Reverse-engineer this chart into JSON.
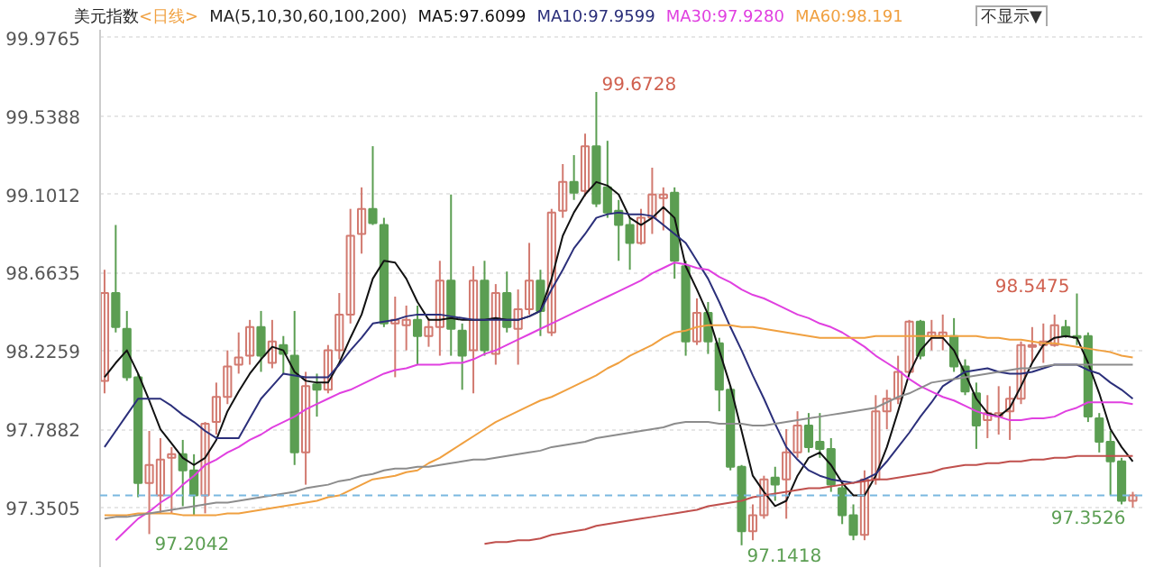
{
  "chart_data": {
    "type": "candlestick",
    "title": "美元指数",
    "subtitle": "<日线>",
    "legend_title": "MA(5,10,30,60,100,200)",
    "legend": "top",
    "tick_labels": "y",
    "grid": "y",
    "annotations": [
      "99.6728",
      "97.2042",
      "97.1418",
      "98.5475",
      "97.3526",
      "不显示▼"
    ],
    "ylim": [
      97.02,
      100.02
    ],
    "yticks": [
      97.3505,
      97.7882,
      98.2259,
      98.6635,
      99.1012,
      99.5388,
      99.9765
    ],
    "ref_lines": [
      {
        "axis": "y",
        "value": 97.42,
        "color": "#7ab8e0",
        "line_style": "dashed"
      }
    ],
    "categories": [
      null,
      null,
      null,
      null,
      null,
      null,
      null,
      null,
      null,
      null,
      null,
      null,
      null,
      null,
      null,
      null,
      null,
      null,
      null,
      null,
      null,
      null,
      null,
      null,
      null,
      null,
      null,
      null,
      null,
      null,
      null,
      null,
      null,
      null,
      null,
      null,
      null,
      null,
      null,
      null,
      null,
      null,
      null,
      null,
      null,
      null,
      null,
      null,
      null,
      null,
      null,
      null,
      null,
      null,
      null,
      null,
      null,
      null,
      null,
      null,
      null,
      null,
      null,
      null,
      null,
      null,
      null,
      null,
      null,
      null,
      null,
      null,
      null,
      null,
      null,
      null,
      null,
      null,
      null,
      null,
      null,
      null,
      null,
      null,
      null,
      null,
      null,
      null,
      null,
      null,
      null,
      null,
      null
    ],
    "ohlc": [
      [
        98.06,
        98.68,
        97.99,
        98.55
      ],
      [
        98.55,
        98.93,
        98.33,
        98.36
      ],
      [
        98.35,
        98.45,
        98.06,
        98.08
      ],
      [
        98.08,
        98.1,
        97.41,
        97.49
      ],
      [
        97.49,
        97.78,
        97.2042,
        97.59
      ],
      [
        97.42,
        97.74,
        97.32,
        97.62
      ],
      [
        97.63,
        97.69,
        97.32,
        97.65
      ],
      [
        97.65,
        97.73,
        97.36,
        97.56
      ],
      [
        97.56,
        97.65,
        97.31,
        97.42
      ],
      [
        97.42,
        97.83,
        97.32,
        97.82
      ],
      [
        97.83,
        98.05,
        97.76,
        97.97
      ],
      [
        97.97,
        98.23,
        97.93,
        98.14
      ],
      [
        98.15,
        98.33,
        98.1,
        98.19
      ],
      [
        98.2,
        98.4,
        98.15,
        98.36
      ],
      [
        98.36,
        98.45,
        98.11,
        98.2
      ],
      [
        98.16,
        98.4,
        98.13,
        98.28
      ],
      [
        98.26,
        98.31,
        98.1,
        98.21
      ],
      [
        98.2,
        98.45,
        97.59,
        97.66
      ],
      [
        97.66,
        98.11,
        97.48,
        98.03
      ],
      [
        98.04,
        98.1,
        97.86,
        98.01
      ],
      [
        98.01,
        98.26,
        97.99,
        98.23
      ],
      [
        98.23,
        98.55,
        98.18,
        98.43
      ],
      [
        98.43,
        99.02,
        98.38,
        98.87
      ],
      [
        98.88,
        99.14,
        98.77,
        99.02
      ],
      [
        99.02,
        99.37,
        98.93,
        98.94
      ],
      [
        98.93,
        98.97,
        98.36,
        98.38
      ],
      [
        98.38,
        98.53,
        98.08,
        98.4
      ],
      [
        98.37,
        98.48,
        98.23,
        98.4
      ],
      [
        98.4,
        98.48,
        98.15,
        98.31
      ],
      [
        98.31,
        98.41,
        98.25,
        98.36
      ],
      [
        98.36,
        98.73,
        98.2,
        98.62
      ],
      [
        98.62,
        99.1,
        98.2,
        98.35
      ],
      [
        98.34,
        98.38,
        98.01,
        98.2
      ],
      [
        98.23,
        98.7,
        97.99,
        98.62
      ],
      [
        98.62,
        98.73,
        98.2,
        98.23
      ],
      [
        98.21,
        98.6,
        98.15,
        98.55
      ],
      [
        98.55,
        98.67,
        98.33,
        98.36
      ],
      [
        98.35,
        98.57,
        98.15,
        98.46
      ],
      [
        98.46,
        98.83,
        98.43,
        98.62
      ],
      [
        98.62,
        98.68,
        98.31,
        98.45
      ],
      [
        98.33,
        99.02,
        98.31,
        99.0
      ],
      [
        99.01,
        99.27,
        98.97,
        99.17
      ],
      [
        99.17,
        99.32,
        99.07,
        99.11
      ],
      [
        99.12,
        99.44,
        99.09,
        99.37
      ],
      [
        99.37,
        99.6728,
        99.03,
        99.05
      ],
      [
        99.14,
        99.4,
        98.97,
        99.0
      ],
      [
        99.01,
        99.07,
        98.73,
        98.93
      ],
      [
        98.93,
        98.97,
        98.68,
        98.83
      ],
      [
        98.83,
        99.02,
        98.82,
        98.97
      ],
      [
        98.97,
        99.25,
        98.88,
        99.1
      ],
      [
        99.08,
        99.14,
        98.9,
        99.1
      ],
      [
        99.11,
        99.14,
        98.63,
        98.73
      ],
      [
        98.7,
        98.73,
        98.2,
        98.28
      ],
      [
        98.28,
        98.52,
        98.26,
        98.44
      ],
      [
        98.44,
        98.5,
        98.21,
        98.28
      ],
      [
        98.27,
        98.3,
        97.89,
        98.01
      ],
      [
        98.01,
        98.03,
        97.56,
        97.58
      ],
      [
        97.58,
        97.59,
        97.1418,
        97.22
      ],
      [
        97.22,
        97.37,
        97.17,
        97.31
      ],
      [
        97.31,
        97.53,
        97.29,
        97.51
      ],
      [
        97.52,
        97.58,
        97.39,
        97.48
      ],
      [
        97.51,
        97.79,
        97.29,
        97.66
      ],
      [
        97.66,
        97.89,
        97.63,
        97.81
      ],
      [
        97.81,
        97.88,
        97.66,
        97.69
      ],
      [
        97.72,
        97.88,
        97.63,
        97.68
      ],
      [
        97.68,
        97.74,
        97.44,
        97.48
      ],
      [
        97.46,
        97.49,
        97.26,
        97.31
      ],
      [
        97.31,
        97.37,
        97.17,
        97.2
      ],
      [
        97.2,
        97.56,
        97.17,
        97.51
      ],
      [
        97.51,
        97.98,
        97.48,
        97.89
      ],
      [
        97.89,
        98.01,
        97.79,
        97.96
      ],
      [
        97.96,
        98.2,
        97.93,
        98.11
      ],
      [
        98.11,
        98.4,
        98.1,
        98.39
      ],
      [
        98.39,
        98.4,
        98.18,
        98.2
      ],
      [
        98.31,
        98.4,
        98.23,
        98.33
      ],
      [
        98.31,
        98.43,
        98.23,
        98.33
      ],
      [
        98.31,
        98.41,
        98.11,
        98.14
      ],
      [
        98.14,
        98.18,
        97.98,
        98.0
      ],
      [
        97.99,
        98.05,
        97.68,
        97.81
      ],
      [
        97.84,
        97.98,
        97.74,
        97.88
      ],
      [
        97.86,
        98.03,
        97.76,
        97.88
      ],
      [
        97.89,
        98.03,
        97.73,
        97.96
      ],
      [
        97.96,
        98.28,
        97.93,
        98.26
      ],
      [
        98.25,
        98.36,
        98.16,
        98.26
      ],
      [
        98.26,
        98.38,
        98.16,
        98.28
      ],
      [
        98.26,
        98.43,
        98.25,
        98.37
      ],
      [
        98.36,
        98.4,
        98.3,
        98.31
      ],
      [
        98.31,
        98.5475,
        98.26,
        98.3
      ],
      [
        98.31,
        98.33,
        97.83,
        97.86
      ],
      [
        97.85,
        97.88,
        97.66,
        97.72
      ],
      [
        97.72,
        97.78,
        97.42,
        97.61
      ],
      [
        97.61,
        97.63,
        97.37,
        97.39
      ],
      [
        97.39,
        97.44,
        97.3526,
        97.42
      ]
    ],
    "series": [
      {
        "name": "MA5:97.6099",
        "type": "line",
        "color": "#111111",
        "values": [
          98.08,
          98.16,
          98.23,
          98.1,
          97.95,
          97.79,
          97.71,
          97.63,
          97.59,
          97.63,
          97.73,
          97.89,
          98.0,
          98.1,
          98.18,
          98.25,
          98.23,
          98.11,
          98.06,
          98.05,
          98.05,
          98.16,
          98.3,
          98.43,
          98.63,
          98.73,
          98.72,
          98.63,
          98.5,
          98.4,
          98.4,
          98.41,
          98.4,
          98.4,
          98.4,
          98.41,
          98.4,
          98.4,
          98.42,
          98.45,
          98.63,
          98.87,
          99.0,
          99.1,
          99.17,
          99.15,
          99.1,
          98.97,
          98.93,
          98.97,
          99.03,
          98.97,
          98.7,
          98.57,
          98.43,
          98.23,
          98.03,
          97.78,
          97.53,
          97.44,
          97.36,
          97.39,
          97.53,
          97.63,
          97.66,
          97.59,
          97.49,
          97.42,
          97.42,
          97.53,
          97.69,
          97.89,
          98.1,
          98.23,
          98.3,
          98.3,
          98.23,
          98.1,
          97.96,
          97.88,
          97.86,
          97.91,
          98.03,
          98.16,
          98.26,
          98.3,
          98.31,
          98.3,
          98.16,
          97.99,
          97.79,
          97.69,
          97.61
        ]
      },
      {
        "name": "MA10:97.9599",
        "type": "line",
        "color": "#2b2f7a",
        "values": [
          97.69,
          97.78,
          97.87,
          97.96,
          97.96,
          97.96,
          97.92,
          97.87,
          97.83,
          97.78,
          97.74,
          97.74,
          97.74,
          97.85,
          97.96,
          98.03,
          98.1,
          98.09,
          98.08,
          98.08,
          98.08,
          98.15,
          98.23,
          98.3,
          98.38,
          98.39,
          98.4,
          98.42,
          98.43,
          98.43,
          98.43,
          98.42,
          98.41,
          98.4,
          98.4,
          98.4,
          98.4,
          98.4,
          98.42,
          98.45,
          98.57,
          98.68,
          98.8,
          98.88,
          98.97,
          98.99,
          99.0,
          98.99,
          98.99,
          98.98,
          98.93,
          98.88,
          98.83,
          98.73,
          98.63,
          98.5,
          98.36,
          98.23,
          98.09,
          97.96,
          97.82,
          97.69,
          97.62,
          97.56,
          97.53,
          97.51,
          97.5,
          97.49,
          97.51,
          97.54,
          97.61,
          97.69,
          97.77,
          97.86,
          97.94,
          98.03,
          98.07,
          98.11,
          98.12,
          98.13,
          98.11,
          98.1,
          98.1,
          98.11,
          98.13,
          98.15,
          98.15,
          98.15,
          98.12,
          98.1,
          98.05,
          98.01,
          97.96
        ]
      },
      {
        "name": "MA30:97.9280",
        "type": "line",
        "color": "#e040e0",
        "values": [
          null,
          97.17,
          97.23,
          97.29,
          97.33,
          97.38,
          97.42,
          97.48,
          97.53,
          97.59,
          97.62,
          97.66,
          97.69,
          97.73,
          97.76,
          97.8,
          97.83,
          97.86,
          97.9,
          97.93,
          97.96,
          97.99,
          98.01,
          98.04,
          98.07,
          98.1,
          98.12,
          98.13,
          98.15,
          98.15,
          98.15,
          98.16,
          98.16,
          98.18,
          98.21,
          98.23,
          98.26,
          98.29,
          98.32,
          98.35,
          98.38,
          98.41,
          98.44,
          98.47,
          98.5,
          98.53,
          98.56,
          98.59,
          98.62,
          98.66,
          98.69,
          98.72,
          98.71,
          98.69,
          98.68,
          98.64,
          98.61,
          98.57,
          98.54,
          98.52,
          98.49,
          98.46,
          98.43,
          98.41,
          98.38,
          98.36,
          98.33,
          98.29,
          98.25,
          98.2,
          98.16,
          98.12,
          98.07,
          98.03,
          98.0,
          97.97,
          97.95,
          97.92,
          97.89,
          97.87,
          97.86,
          97.84,
          97.84,
          97.85,
          97.85,
          97.86,
          97.89,
          97.91,
          97.94,
          97.94,
          97.94,
          97.94,
          97.93
        ]
      },
      {
        "name": "MA60:98.191",
        "type": "line",
        "color": "#f0a040",
        "values": [
          97.31,
          97.31,
          97.31,
          97.32,
          97.32,
          97.32,
          97.32,
          97.31,
          97.31,
          97.31,
          97.31,
          97.32,
          97.32,
          97.33,
          97.34,
          97.35,
          97.36,
          97.37,
          97.38,
          97.39,
          97.41,
          97.42,
          97.45,
          97.48,
          97.51,
          97.52,
          97.53,
          97.55,
          97.56,
          97.6,
          97.63,
          97.67,
          97.71,
          97.75,
          97.79,
          97.83,
          97.86,
          97.89,
          97.92,
          97.95,
          97.97,
          98.0,
          98.03,
          98.06,
          98.09,
          98.13,
          98.16,
          98.2,
          98.23,
          98.26,
          98.3,
          98.33,
          98.34,
          98.36,
          98.37,
          98.37,
          98.37,
          98.36,
          98.36,
          98.35,
          98.34,
          98.33,
          98.32,
          98.31,
          98.3,
          98.3,
          98.3,
          98.3,
          98.3,
          98.31,
          98.31,
          98.31,
          98.31,
          98.31,
          98.31,
          98.31,
          98.31,
          98.31,
          98.31,
          98.3,
          98.3,
          98.29,
          98.29,
          98.28,
          98.27,
          98.27,
          98.26,
          98.25,
          98.24,
          98.23,
          98.22,
          98.2,
          98.19
        ]
      },
      {
        "type": "line",
        "color": "#8c8c8c",
        "values": [
          97.29,
          97.3,
          97.3,
          97.31,
          97.32,
          97.33,
          97.34,
          97.35,
          97.36,
          97.37,
          97.38,
          97.38,
          97.39,
          97.4,
          97.41,
          97.42,
          97.43,
          97.44,
          97.46,
          97.47,
          97.48,
          97.5,
          97.51,
          97.53,
          97.54,
          97.56,
          97.57,
          97.57,
          97.58,
          97.58,
          97.59,
          97.6,
          97.61,
          97.62,
          97.62,
          97.63,
          97.64,
          97.65,
          97.66,
          97.67,
          97.69,
          97.7,
          97.71,
          97.72,
          97.74,
          97.75,
          97.76,
          97.77,
          97.78,
          97.79,
          97.8,
          97.82,
          97.83,
          97.83,
          97.83,
          97.82,
          97.82,
          97.82,
          97.81,
          97.81,
          97.82,
          97.83,
          97.84,
          97.85,
          97.86,
          97.87,
          97.88,
          97.89,
          97.9,
          97.91,
          97.94,
          97.97,
          97.99,
          98.02,
          98.05,
          98.06,
          98.07,
          98.08,
          98.09,
          98.1,
          98.11,
          98.12,
          98.13,
          98.13,
          98.14,
          98.15,
          98.15,
          98.15,
          98.15,
          98.15,
          98.15,
          98.15,
          98.15
        ]
      },
      {
        "type": "line",
        "color": "#c0504d",
        "values": [
          null,
          null,
          null,
          null,
          null,
          null,
          null,
          null,
          null,
          null,
          null,
          null,
          null,
          null,
          null,
          null,
          null,
          null,
          null,
          null,
          null,
          null,
          null,
          null,
          null,
          null,
          null,
          null,
          null,
          null,
          null,
          null,
          null,
          null,
          97.15,
          97.16,
          97.16,
          97.17,
          97.17,
          97.18,
          97.2,
          97.21,
          97.22,
          97.23,
          97.25,
          97.26,
          97.27,
          97.28,
          97.29,
          97.3,
          97.31,
          97.32,
          97.33,
          97.34,
          97.36,
          97.37,
          97.38,
          97.39,
          97.41,
          97.42,
          97.43,
          97.44,
          97.45,
          97.46,
          97.46,
          97.47,
          97.48,
          97.49,
          97.5,
          97.51,
          97.51,
          97.52,
          97.53,
          97.54,
          97.55,
          97.57,
          97.58,
          97.59,
          97.59,
          97.6,
          97.6,
          97.61,
          97.61,
          97.62,
          97.62,
          97.63,
          97.63,
          97.64,
          97.64,
          97.64,
          97.64,
          97.64,
          97.64
        ]
      }
    ]
  }
}
